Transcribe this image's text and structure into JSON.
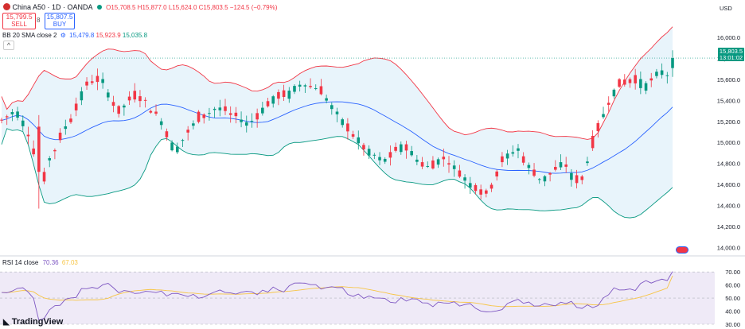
{
  "header": {
    "symbol": "China A50 · 1D · OANDA",
    "ohlc_text": "O15,708.5 H15,877.0 L15,624.0 C15,803.5 −124.5 (−0.79%)",
    "sell": {
      "price": "15,799.5",
      "label": "SELL"
    },
    "spread": "8",
    "buy": {
      "price": "15,807.5",
      "label": "BUY"
    },
    "bb_label": "BB 20 SMA close 2",
    "bb_values": [
      "15,479.8",
      "15,923.9",
      "15,035.8"
    ],
    "currency": "USD"
  },
  "price_badge": {
    "price": "15,803.5",
    "countdown": "13:01:02"
  },
  "rsi": {
    "label": "RSI 14 close",
    "values": [
      "70.36",
      "67.03"
    ]
  },
  "footer": {
    "brand": "TradingView"
  },
  "colors": {
    "up": "#089981",
    "down": "#f23645",
    "bb_upper": "#f23645",
    "bb_basis": "#2962ff",
    "bb_lower": "#089981",
    "rsi": "#7e57c2",
    "rsi_ma": "#f7c545",
    "band_fill": "#e8f4fb"
  },
  "icons": [
    "settings-icon",
    "collapse-icon",
    "flag-icon"
  ],
  "chart_data": [
    {
      "type": "candlestick",
      "title": "China A50 · 1D · OANDA",
      "ylim": [
        13950,
        16250
      ],
      "yticks": [
        14000,
        14200,
        14400,
        14600,
        14800,
        15000,
        15200,
        15400,
        15600,
        15800,
        16000
      ],
      "ytick_labels": [
        "14,000.0",
        "14,200.0",
        "14,400.0",
        "14,600.0",
        "14,800.0",
        "15,000.0",
        "15,200.0",
        "15,400.0",
        "15,600.0",
        "15,800.0",
        "16,000.0"
      ],
      "last_price": 15803.5,
      "candles": [],
      "series": [
        {
          "name": "BB Upper",
          "values": []
        },
        {
          "name": "BB Basis",
          "values": []
        },
        {
          "name": "BB Lower",
          "values": []
        }
      ]
    },
    {
      "type": "line",
      "title": "RSI 14 close",
      "ylim": [
        30,
        75
      ],
      "yticks": [
        30,
        40,
        50,
        60,
        70
      ],
      "ytick_labels": [
        "30.00",
        "40.00",
        "50.00",
        "60.00",
        "70.00"
      ],
      "band": [
        30,
        70
      ],
      "series": [
        {
          "name": "RSI",
          "values": []
        },
        {
          "name": "RSI MA",
          "values": []
        }
      ]
    }
  ]
}
